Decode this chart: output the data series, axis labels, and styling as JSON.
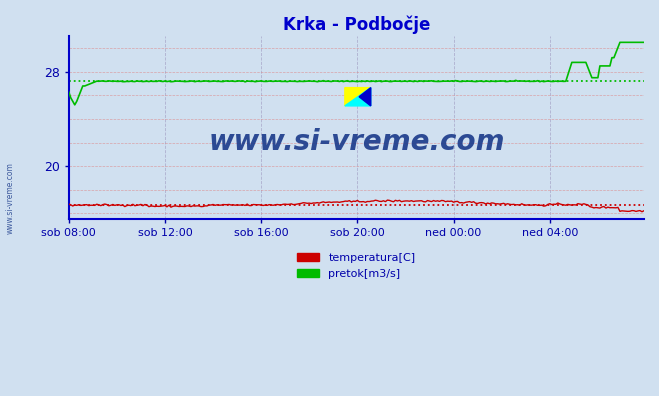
{
  "title": "Krka - Podbočje",
  "title_color": "#0000cc",
  "bg_color": "#d0e0f0",
  "plot_bg_color": "#d0e0f0",
  "grid_color_h": "#dd8888",
  "grid_color_v": "#aaaacc",
  "xlabel_color": "#0000aa",
  "ytick_color": "#0000aa",
  "xtick_labels": [
    "sob 08:00",
    "sob 12:00",
    "sob 16:00",
    "sob 20:00",
    "ned 00:00",
    "ned 04:00"
  ],
  "n_points": 288,
  "temp_color": "#cc0000",
  "flow_color": "#00bb00",
  "flow_avg": 27.2,
  "temp_avg": 16.7,
  "watermark_text": "www.si-vreme.com",
  "watermark_color": "#1a3a8a",
  "legend_labels": [
    "temperatura[C]",
    "pretok[m3/s]"
  ],
  "legend_colors": [
    "#cc0000",
    "#00bb00"
  ],
  "ymin": 15.5,
  "ymax": 31.0,
  "spine_color": "#0000cc",
  "left_label": "www.si-vreme.com"
}
